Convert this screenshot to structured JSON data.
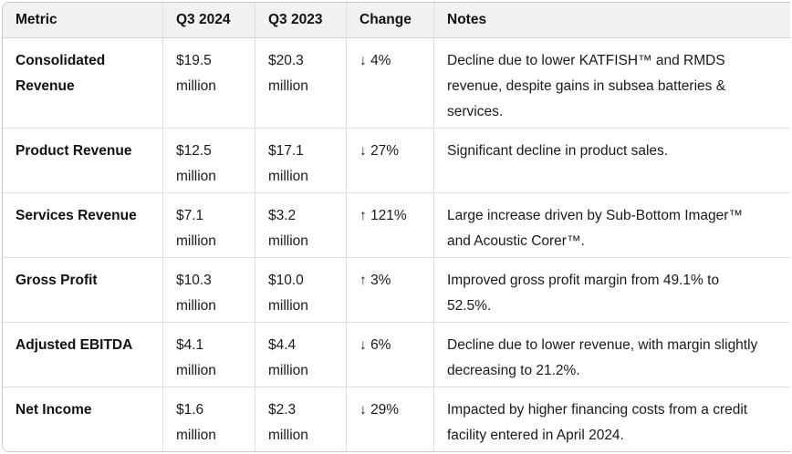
{
  "table": {
    "headers": [
      "Metric",
      "Q3 2024",
      "Q3 2023",
      "Change",
      "Notes"
    ],
    "rows": [
      {
        "metric": "Consolidated Revenue",
        "q3_2024": "$19.5 million",
        "q3_2023": "$20.3 million",
        "change_direction": "down",
        "change_arrow": "↓",
        "change_value": "4%",
        "note_lines": [
          "Decline due to lower KATFISH™ and RMDS",
          "revenue, despite gains in subsea batteries &",
          "services."
        ]
      },
      {
        "metric": "Product Revenue",
        "q3_2024": "$12.5 million",
        "q3_2023": "$17.1 million",
        "change_direction": "down",
        "change_arrow": "↓",
        "change_value": "27%",
        "note_lines": [
          "Significant decline in product sales."
        ]
      },
      {
        "metric": "Services Revenue",
        "q3_2024": "$7.1 million",
        "q3_2023": "$3.2 million",
        "change_direction": "up",
        "change_arrow": "↑",
        "change_value": "121%",
        "note_lines": [
          "Large increase driven by Sub-Bottom Imager™",
          "and Acoustic Corer™."
        ]
      },
      {
        "metric": "Gross Profit",
        "q3_2024": "$10.3 million",
        "q3_2023": "$10.0 million",
        "change_direction": "up",
        "change_arrow": "↑",
        "change_value": "3%",
        "note_lines": [
          "Improved gross profit margin from 49.1% to",
          "52.5%."
        ]
      },
      {
        "metric": "Adjusted EBITDA",
        "q3_2024": "$4.1 million",
        "q3_2023": "$4.4 million",
        "change_direction": "down",
        "change_arrow": "↓",
        "change_value": "6%",
        "note_lines": [
          "Decline due to lower revenue, with margin slightly",
          "decreasing to 21.2%."
        ]
      },
      {
        "metric": "Net Income",
        "q3_2024": "$1.6 million",
        "q3_2023": "$2.3 million",
        "change_direction": "down",
        "change_arrow": "↓",
        "change_value": "29%",
        "note_lines": [
          "Impacted by higher financing costs from a credit",
          "facility entered in April 2024."
        ]
      }
    ]
  },
  "colors": {
    "background": "#ffffff",
    "header_background": "#f1f1f2",
    "outer_border": "#c9c9c9",
    "grid_line": "#dedede",
    "text": "#1a1a1a"
  }
}
